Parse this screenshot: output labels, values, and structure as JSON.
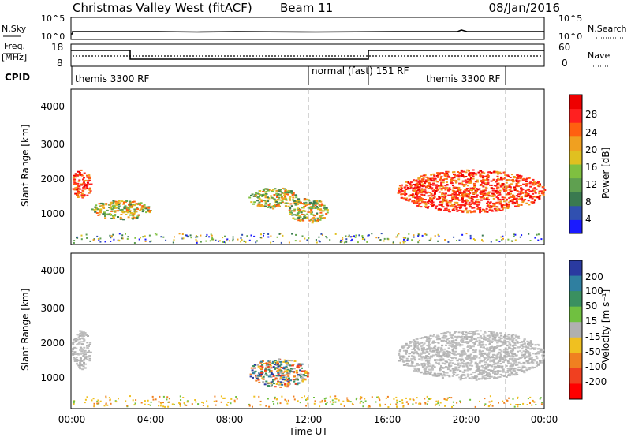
{
  "header": {
    "station": "Christmas Valley West (fitACF)",
    "beam": "Beam 11",
    "date": "08/Jan/2016"
  },
  "noise_panel": {
    "left_label": "N.Sky",
    "right_label": "N.Search",
    "left_ticks": [
      "10^5",
      "10^0"
    ],
    "right_ticks": [
      "10^5",
      "10^0"
    ]
  },
  "freq_panel": {
    "left_label_1": "Freq.",
    "left_label_2": "[MHz]",
    "right_label": "Nave",
    "left_ticks": [
      "18",
      "8"
    ],
    "right_ticks": [
      "60",
      "0"
    ]
  },
  "cpid": {
    "label": "CPID",
    "segments": [
      {
        "name": "themis 3300 RF",
        "start_h": 0,
        "end_h": 12
      },
      {
        "name": "normal (fast) 151 RF",
        "start_h": 12,
        "end_h": 15
      },
      {
        "name": "themis 3300 RF",
        "start_h": 15,
        "end_h": 22
      }
    ]
  },
  "x_axis": {
    "ticks": [
      "00:00",
      "04:00",
      "08:00",
      "12:00",
      "16:00",
      "20:00",
      "00:00"
    ],
    "label": "Time UT"
  },
  "y_axis": {
    "label": "Slant Range [km]",
    "ticks": [
      "4000",
      "3000",
      "2000",
      "1000"
    ]
  },
  "power_colorbar": {
    "label": "Power [dB]",
    "ticks": [
      "28",
      "24",
      "20",
      "16",
      "12",
      "8",
      "4"
    ],
    "colors": [
      "#1a1aff",
      "#3050b0",
      "#3a7a50",
      "#5fa050",
      "#7fc040",
      "#e0c020",
      "#f0a020",
      "#ff6010",
      "#ff2020",
      "#ee0000"
    ]
  },
  "velocity_colorbar": {
    "label": "Velocity [m s⁻¹]",
    "ticks": [
      "200",
      "100",
      "50",
      "15",
      "-15",
      "-50",
      "-100",
      "-200"
    ],
    "colors": [
      "#2a3aa0",
      "#2f7fa0",
      "#3a9060",
      "#70c040",
      "#b0b0b0",
      "#f0c020",
      "#f08020",
      "#f04020",
      "#ff0000"
    ]
  },
  "chart_data": {
    "type": "heatmap",
    "xlim_hours": [
      0,
      24
    ],
    "ylim_km": [
      180,
      4550
    ],
    "dashed_markers_hours": [
      12,
      22
    ],
    "frequency_mhz": [
      {
        "start_h": 0,
        "end_h": 3,
        "value": 14.5
      },
      {
        "start_h": 3,
        "end_h": 15,
        "value": 10.5
      },
      {
        "start_h": 15,
        "end_h": 24,
        "value": 14.5
      }
    ],
    "power_patches": [
      {
        "t0": 0.0,
        "t1": 1.0,
        "r0": 1500,
        "r1": 2300,
        "level": "high"
      },
      {
        "t0": 1.0,
        "t1": 4.0,
        "r0": 900,
        "r1": 1450,
        "level": "medium"
      },
      {
        "t0": 9.0,
        "t1": 11.5,
        "r0": 1200,
        "r1": 1800,
        "level": "medium"
      },
      {
        "t0": 11.0,
        "t1": 13.0,
        "r0": 800,
        "r1": 1500,
        "level": "medium"
      },
      {
        "t0": 16.5,
        "t1": 24.0,
        "r0": 1100,
        "r1": 2300,
        "level": "high"
      }
    ],
    "velocity_patches": [
      {
        "t0": 0.0,
        "t1": 1.0,
        "r0": 1300,
        "r1": 2400,
        "sign": "near-zero"
      },
      {
        "t0": 9.0,
        "t1": 12.0,
        "r0": 800,
        "r1": 1600,
        "sign": "mixed"
      },
      {
        "t0": 16.5,
        "t1": 24.0,
        "r0": 1000,
        "r1": 2400,
        "sign": "near-zero"
      }
    ]
  }
}
